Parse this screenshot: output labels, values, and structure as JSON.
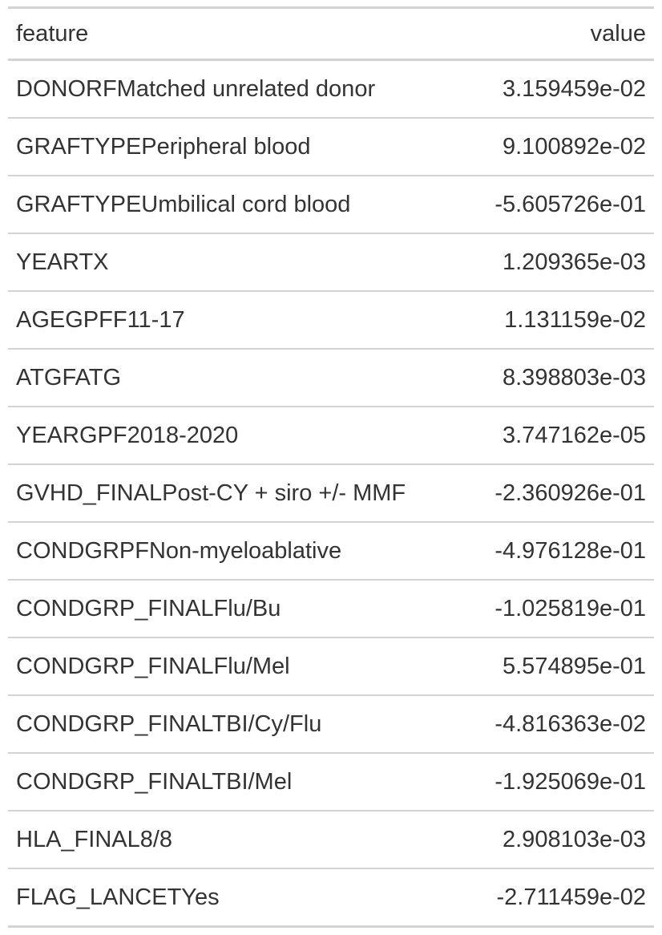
{
  "table": {
    "headers": {
      "feature": "feature",
      "value": "value"
    },
    "rows": [
      {
        "feature": "DONORFMatched unrelated donor",
        "value": "3.159459e-02"
      },
      {
        "feature": "GRAFTYPEPeripheral blood",
        "value": "9.100892e-02"
      },
      {
        "feature": "GRAFTYPEUmbilical cord blood",
        "value": "-5.605726e-01"
      },
      {
        "feature": "YEARTX",
        "value": "1.209365e-03"
      },
      {
        "feature": "AGEGPFF11-17",
        "value": "1.131159e-02"
      },
      {
        "feature": "ATGFATG",
        "value": "8.398803e-03"
      },
      {
        "feature": "YEARGPF2018-2020",
        "value": "3.747162e-05"
      },
      {
        "feature": "GVHD_FINALPost-CY + siro +/- MMF",
        "value": "-2.360926e-01"
      },
      {
        "feature": "CONDGRPFNon-myeloablative",
        "value": "-4.976128e-01"
      },
      {
        "feature": "CONDGRP_FINALFlu/Bu",
        "value": "-1.025819e-01"
      },
      {
        "feature": "CONDGRP_FINALFlu/Mel",
        "value": "5.574895e-01"
      },
      {
        "feature": "CONDGRP_FINALTBI/Cy/Flu",
        "value": "-4.816363e-02"
      },
      {
        "feature": "CONDGRP_FINALTBI/Mel",
        "value": "-1.925069e-01"
      },
      {
        "feature": "HLA_FINAL8/8",
        "value": "2.908103e-03"
      },
      {
        "feature": "FLAG_LANCETYes",
        "value": "-2.711459e-02"
      }
    ]
  }
}
